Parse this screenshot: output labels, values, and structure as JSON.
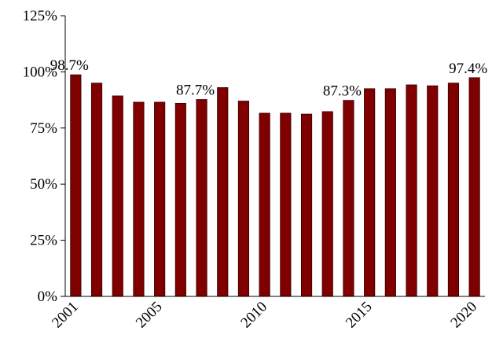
{
  "chart_data": {
    "type": "bar",
    "categories": [
      "2001",
      null,
      null,
      null,
      "2005",
      null,
      null,
      null,
      null,
      "2010",
      null,
      null,
      null,
      null,
      "2015",
      null,
      null,
      null,
      null,
      "2020"
    ],
    "values": [
      98.7,
      95,
      89.3,
      86.5,
      86.5,
      86,
      87.7,
      93,
      87,
      81.6,
      81.6,
      81.2,
      82.3,
      87.3,
      92.5,
      92.5,
      94.2,
      93.8,
      95,
      97.4
    ],
    "value_labels": [
      "98.7%",
      null,
      null,
      null,
      null,
      null,
      "87.7%",
      null,
      null,
      null,
      null,
      null,
      null,
      "87.3%",
      null,
      null,
      null,
      null,
      null,
      "97.4%"
    ],
    "color": "#800000",
    "ylim": [
      0,
      125
    ],
    "yticks": [
      {
        "value": 0,
        "label": "0%"
      },
      {
        "value": 25,
        "label": "25%"
      },
      {
        "value": 50,
        "label": "50%"
      },
      {
        "value": 75,
        "label": "75%"
      },
      {
        "value": 100,
        "label": "100%"
      },
      {
        "value": 125,
        "label": "125%"
      }
    ],
    "grid": false
  }
}
